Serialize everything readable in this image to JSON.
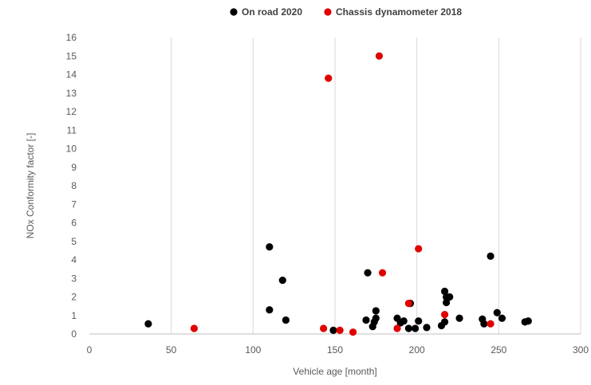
{
  "chart_data": {
    "type": "scatter",
    "xlabel": "Vehicle age [month]",
    "ylabel": "NOx Conformity factor [-]",
    "xlim": [
      0,
      300
    ],
    "ylim": [
      0,
      16
    ],
    "x_ticks": [
      "0",
      "50",
      "100",
      "150",
      "200",
      "250",
      "300"
    ],
    "y_ticks": [
      "0",
      "1",
      "2",
      "3",
      "4",
      "5",
      "6",
      "7",
      "8",
      "9",
      "10",
      "11",
      "12",
      "13",
      "14",
      "15",
      "16"
    ],
    "grid": "vertical",
    "legend_position": "top",
    "series": [
      {
        "name": "On road 2020",
        "color": "#000000",
        "points": [
          [
            36,
            0.55
          ],
          [
            110,
            4.7
          ],
          [
            110,
            1.3
          ],
          [
            118,
            2.9
          ],
          [
            120,
            0.75
          ],
          [
            149,
            0.2
          ],
          [
            169,
            0.75
          ],
          [
            170,
            3.3
          ],
          [
            173,
            0.4
          ],
          [
            174,
            0.65
          ],
          [
            175,
            0.85
          ],
          [
            175,
            1.25
          ],
          [
            188,
            0.85
          ],
          [
            190,
            0.6
          ],
          [
            192,
            0.7
          ],
          [
            195,
            0.3
          ],
          [
            196,
            1.65
          ],
          [
            199,
            0.3
          ],
          [
            201,
            0.7
          ],
          [
            206,
            0.35
          ],
          [
            215,
            0.45
          ],
          [
            217,
            2.3
          ],
          [
            217,
            0.65
          ],
          [
            218,
            1.7
          ],
          [
            218,
            2.0
          ],
          [
            220,
            2.0
          ],
          [
            226,
            0.85
          ],
          [
            240,
            0.8
          ],
          [
            241,
            0.55
          ],
          [
            245,
            4.2
          ],
          [
            249,
            1.15
          ],
          [
            252,
            0.85
          ],
          [
            266,
            0.65
          ],
          [
            268,
            0.7
          ]
        ]
      },
      {
        "name": "Chassis dynamometer 2018",
        "color": "#e00000",
        "points": [
          [
            64,
            0.3
          ],
          [
            143,
            0.3
          ],
          [
            146,
            13.8
          ],
          [
            153,
            0.2
          ],
          [
            161,
            0.1
          ],
          [
            177,
            15.0
          ],
          [
            179,
            3.3
          ],
          [
            188,
            0.3
          ],
          [
            195,
            1.65
          ],
          [
            201,
            4.6
          ],
          [
            217,
            1.05
          ],
          [
            245,
            0.55
          ]
        ]
      }
    ]
  }
}
